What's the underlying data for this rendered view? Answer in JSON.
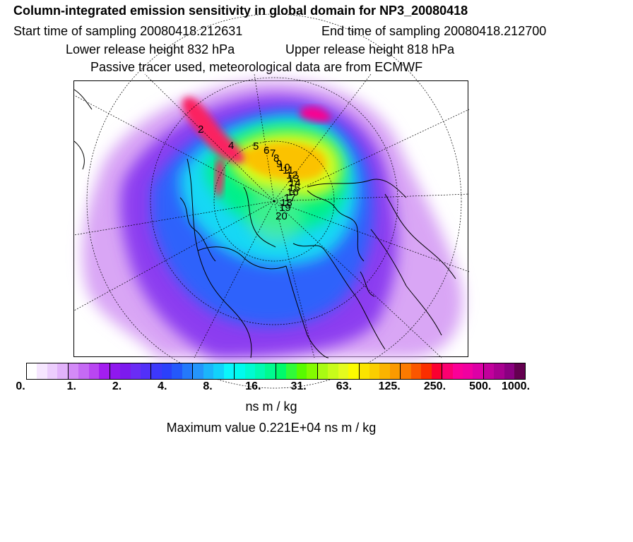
{
  "header": {
    "title": "Column-integrated emission sensitivity in global domain for NP3_20080418",
    "start_label": "Start time of sampling 20080418.212631",
    "end_label": "End time of sampling 20080418.212700",
    "lower_label": "Lower release height  832 hPa",
    "upper_label": "Upper release height  818 hPa",
    "tracer_label": "Passive tracer used, meteorological data are from ECMWF"
  },
  "trajectory_markers": [
    "2",
    "4",
    "5",
    "6",
    "7",
    "8",
    "9",
    "10",
    "11",
    "12",
    "13",
    "14",
    "15",
    "16",
    "17",
    "18",
    "19",
    "20"
  ],
  "colorbar": {
    "tick_labels": [
      "0.",
      "1.",
      "2.",
      "4.",
      "8.",
      "16.",
      "31.",
      "63.",
      "125.",
      "250.",
      "500.",
      "1000."
    ],
    "colors": [
      "#ffffff",
      "#f6e6ff",
      "#eccdfd",
      "#e2b2fb",
      "#d38af7",
      "#c56af4",
      "#b946f2",
      "#a31ef0",
      "#8f18ee",
      "#7c1aee",
      "#6a2cf5",
      "#5230f8",
      "#3d38fb",
      "#2b40fb",
      "#2458fb",
      "#2479fb",
      "#2595fb",
      "#1cb5fb",
      "#12d2fb",
      "#0af6fb",
      "#00fbee",
      "#00fbd2",
      "#00fbb2",
      "#00fb8f",
      "#00fb6b",
      "#30fb39",
      "#58fb00",
      "#84fb00",
      "#a9fb12",
      "#c8fb1a",
      "#e4fb1e",
      "#fbfb00",
      "#fbe400",
      "#fbce00",
      "#fbb400",
      "#fb9a00",
      "#fb7a00",
      "#fb5600",
      "#fb2e00",
      "#fb0030",
      "#fb0070",
      "#fb0097",
      "#f100a0",
      "#dd00a6",
      "#c2009c",
      "#a80090",
      "#8a0081",
      "#640050"
    ],
    "unit_label": "ns m / kg",
    "max_label": "Maximum value  0.221E+04 ns m / kg"
  }
}
